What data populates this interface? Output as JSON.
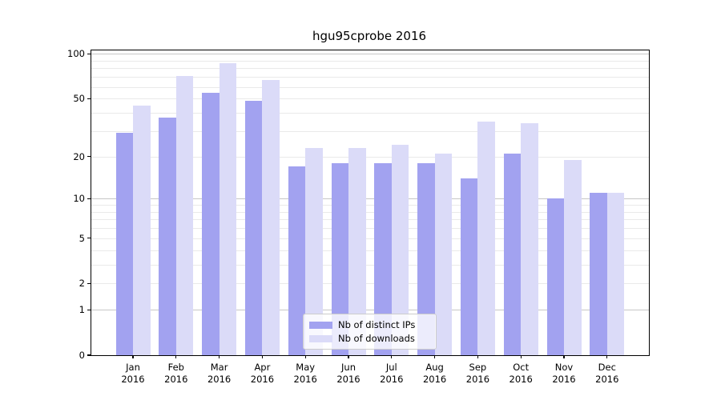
{
  "chart_data": {
    "type": "bar",
    "title": "hgu95cprobe 2016",
    "year_label": "2016",
    "categories": [
      "Jan",
      "Feb",
      "Mar",
      "Apr",
      "May",
      "Jun",
      "Jul",
      "Aug",
      "Sep",
      "Oct",
      "Nov",
      "Dec"
    ],
    "series": [
      {
        "key": "distinct-ips",
        "name": "Nb of distinct IPs",
        "color": "#a2a2f0",
        "values": [
          29,
          37,
          55,
          48,
          17,
          18,
          18,
          18,
          14,
          21,
          10,
          11
        ]
      },
      {
        "key": "downloads",
        "name": "Nb of downloads",
        "color": "#dbdbf8",
        "values": [
          45,
          71,
          87,
          67,
          23,
          23,
          24,
          21,
          35,
          34,
          19,
          11
        ]
      }
    ],
    "yscale": "log1p",
    "ylim": [
      0,
      107
    ],
    "y_tick_values": [
      100,
      50,
      20,
      10,
      5,
      2,
      1,
      0
    ],
    "y_major_gridlines": [
      1,
      10,
      100
    ],
    "y_minor_gridlines": [
      2,
      3,
      4,
      5,
      6,
      7,
      8,
      9,
      20,
      30,
      40,
      50,
      60,
      70,
      80,
      90
    ],
    "grid": true,
    "legend_position": "lower center",
    "colors": {
      "axis": "#000000",
      "background": "#ffffff",
      "major_grid": "#c6c6c6",
      "minor_grid": "#e9e9e9"
    }
  }
}
